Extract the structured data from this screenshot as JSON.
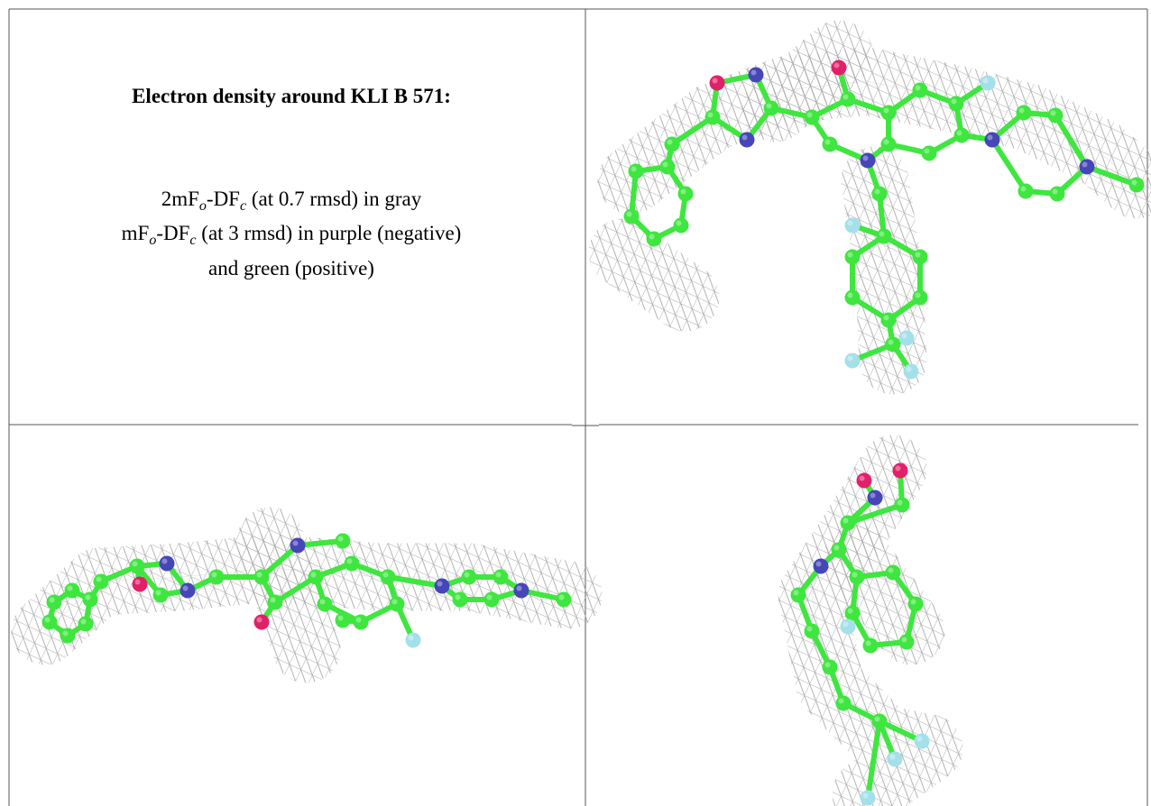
{
  "title": "Electron density around KLI B 571:",
  "caption": [
    [
      "2mF",
      "o",
      "-DF",
      "c",
      " (at 0.7 rmsd) in gray"
    ],
    [
      "mF",
      "o",
      "-DF",
      "c",
      " (at 3 rmsd) in purple (negative)"
    ],
    [
      "and green (positive)"
    ]
  ]
}
